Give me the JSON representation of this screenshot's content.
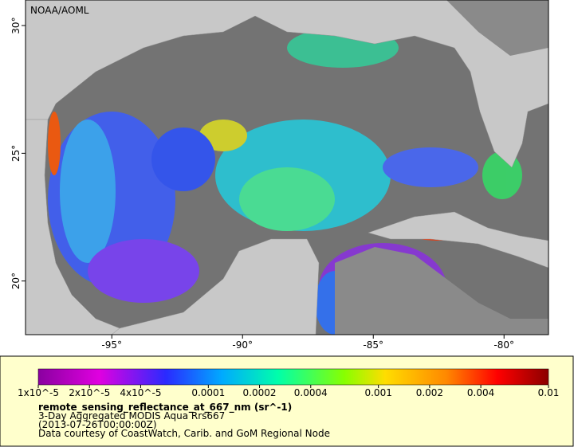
{
  "map": {
    "credit": "NOAA/AOML",
    "xlim": [
      -98.3,
      -78.3
    ],
    "ylim": [
      17.9,
      31.0
    ],
    "xticks": [
      {
        "value": -95,
        "label": "-95°"
      },
      {
        "value": -90,
        "label": "-90°"
      },
      {
        "value": -85,
        "label": "-85°"
      },
      {
        "value": -80,
        "label": "-80°"
      }
    ],
    "yticks": [
      {
        "value": 20,
        "label": "20°"
      },
      {
        "value": 25,
        "label": "25°"
      },
      {
        "value": 30,
        "label": "30°"
      }
    ]
  },
  "colorbar": {
    "scale": "log",
    "lim": [
      1e-05,
      0.01
    ],
    "ticks": [
      {
        "value": 1e-05,
        "label": "1x10^-5"
      },
      {
        "value": 2e-05,
        "label": "2x10^-5"
      },
      {
        "value": 4e-05,
        "label": "4x10^-5"
      },
      {
        "value": 0.0001,
        "label": "0.0001"
      },
      {
        "value": 0.0002,
        "label": "0.0002"
      },
      {
        "value": 0.0004,
        "label": "0.0004"
      },
      {
        "value": 0.001,
        "label": "0.001"
      },
      {
        "value": 0.002,
        "label": "0.002"
      },
      {
        "value": 0.004,
        "label": "0.004"
      },
      {
        "value": 0.01,
        "label": "0.01"
      }
    ]
  },
  "legend": {
    "variable": "remote_sensing_reflectance_at_667_nm (sr^-1)",
    "lines": [
      "3-Day Aggregated MODIS Aqua Rrs667",
      "(2013-07-26T00:00:00Z)",
      "Data courtesy of CoastWatch, Carib. and GoM Regional Node"
    ]
  }
}
